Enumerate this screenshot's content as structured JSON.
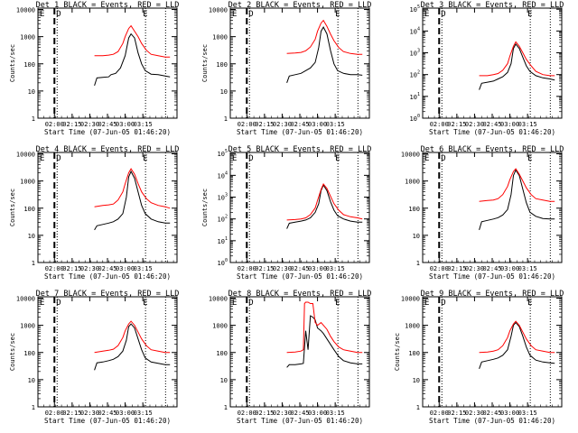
{
  "colors": {
    "background": "#ffffff",
    "events": "#000000",
    "lld": "#ff0000",
    "axis": "#000000"
  },
  "chart_data": [
    {
      "type": "line",
      "title": "Det 1  BLACK = Events, RED = LLD",
      "ylabel": "Counts/sec",
      "xlabel": "Start Time (07-Jun-05 01:46:20)",
      "x_ticks": [
        "02:00",
        "02:15",
        "02:30",
        "02:45",
        "03:00",
        "03:15"
      ],
      "y_ticks": [
        "1",
        "10",
        "100",
        "1000",
        "10000"
      ],
      "ylim_log10": [
        0,
        4.05
      ],
      "flags": [
        "D",
        "E"
      ],
      "dashed_line_x": 14,
      "dotted_lines_x": [
        14,
        89,
        106
      ],
      "series": [
        {
          "name": "Events",
          "x": [
            48,
            50,
            55,
            60,
            62,
            66,
            70,
            74,
            77,
            79,
            82,
            85,
            88,
            91,
            96,
            102,
            108,
            112
          ],
          "y": [
            1.2,
            1.48,
            1.5,
            1.52,
            1.6,
            1.65,
            1.85,
            2.3,
            2.95,
            3.1,
            2.95,
            2.4,
            2.0,
            1.75,
            1.62,
            1.6,
            1.55,
            1.52
          ]
        },
        {
          "name": "LLD",
          "x": [
            48,
            55,
            60,
            64,
            68,
            72,
            74,
            77,
            79,
            82,
            85,
            88,
            92,
            96,
            102,
            108,
            112
          ],
          "y": [
            2.3,
            2.3,
            2.32,
            2.35,
            2.45,
            2.75,
            3.0,
            3.3,
            3.4,
            3.2,
            3.0,
            2.75,
            2.5,
            2.35,
            2.3,
            2.25,
            2.25
          ]
        }
      ]
    },
    {
      "type": "line",
      "title": "Det 2  BLACK = Events, RED = LLD",
      "ylabel": "Counts/sec",
      "xlabel": "Start Time (07-Jun-05 01:46:20)",
      "x_ticks": [
        "02:00",
        "02:15",
        "02:30",
        "02:45",
        "03:00",
        "03:15"
      ],
      "y_ticks": [
        "1",
        "10",
        "100",
        "1000",
        "10000"
      ],
      "ylim_log10": [
        0,
        4.05
      ],
      "flags": [
        "D",
        "E"
      ],
      "dashed_line_x": 14,
      "dotted_lines_x": [
        14,
        89,
        106
      ],
      "series": [
        {
          "name": "Events",
          "x": [
            48,
            50,
            55,
            60,
            64,
            68,
            72,
            75,
            77,
            79,
            82,
            85,
            88,
            91,
            96,
            102,
            108,
            112
          ],
          "y": [
            1.3,
            1.55,
            1.6,
            1.65,
            1.75,
            1.85,
            2.05,
            2.6,
            3.2,
            3.35,
            3.1,
            2.5,
            2.0,
            1.75,
            1.65,
            1.6,
            1.6,
            1.58
          ]
        },
        {
          "name": "LLD",
          "x": [
            48,
            55,
            60,
            64,
            68,
            72,
            74,
            77,
            79,
            82,
            85,
            88,
            92,
            96,
            102,
            108,
            112
          ],
          "y": [
            2.38,
            2.4,
            2.42,
            2.48,
            2.62,
            2.9,
            3.2,
            3.5,
            3.6,
            3.38,
            3.1,
            2.85,
            2.6,
            2.45,
            2.38,
            2.35,
            2.35
          ]
        }
      ]
    },
    {
      "type": "line",
      "title": "Det 3  BLACK = Events, RED = LLD",
      "ylabel": "",
      "xlabel": "Start Time (07-Jun-05 01:46:20)",
      "x_ticks": [
        "02:00",
        "02:15",
        "02:30",
        "02:45",
        "03:00",
        "03:15"
      ],
      "y_ticks": [
        "10^0",
        "10^1",
        "10^2",
        "10^3",
        "10^4",
        "10^5"
      ],
      "ylim_log10": [
        0,
        5.05
      ],
      "flags": [
        "D",
        "E"
      ],
      "dashed_line_x": 14,
      "dotted_lines_x": [
        14,
        89,
        106
      ],
      "series": [
        {
          "name": "Events",
          "x": [
            48,
            50,
            55,
            60,
            64,
            68,
            72,
            75,
            77,
            79,
            82,
            85,
            88,
            91,
            96,
            102,
            108,
            112
          ],
          "y": [
            1.3,
            1.6,
            1.65,
            1.7,
            1.8,
            1.9,
            2.1,
            2.5,
            3.2,
            3.4,
            3.2,
            2.8,
            2.4,
            2.15,
            1.95,
            1.85,
            1.8,
            1.75
          ]
        },
        {
          "name": "LLD",
          "x": [
            48,
            55,
            60,
            64,
            68,
            72,
            74,
            77,
            79,
            82,
            85,
            88,
            92,
            96,
            102,
            108,
            112
          ],
          "y": [
            1.95,
            1.95,
            2.0,
            2.05,
            2.2,
            2.5,
            2.85,
            3.3,
            3.5,
            3.3,
            3.0,
            2.7,
            2.4,
            2.15,
            2.0,
            1.95,
            1.95
          ]
        }
      ]
    },
    {
      "type": "line",
      "title": "Det 4  BLACK = Events, RED = LLD",
      "ylabel": "Counts/sec",
      "xlabel": "Start Time (07-Jun-05 01:46:20)",
      "x_ticks": [
        "02:00",
        "02:15",
        "02:30",
        "02:45",
        "03:00",
        "03:15"
      ],
      "y_ticks": [
        "1",
        "10",
        "100",
        "1000",
        "10000"
      ],
      "ylim_log10": [
        0,
        4.05
      ],
      "flags": [
        "D",
        "E"
      ],
      "dashed_line_x": 14,
      "dotted_lines_x": [
        14,
        89,
        106
      ],
      "series": [
        {
          "name": "Events",
          "x": [
            48,
            50,
            55,
            60,
            64,
            68,
            72,
            75,
            77,
            79,
            82,
            85,
            88,
            91,
            96,
            102,
            108,
            112
          ],
          "y": [
            1.2,
            1.35,
            1.4,
            1.45,
            1.5,
            1.6,
            1.8,
            2.4,
            3.15,
            3.35,
            3.1,
            2.6,
            2.1,
            1.8,
            1.6,
            1.5,
            1.45,
            1.45
          ]
        },
        {
          "name": "LLD",
          "x": [
            48,
            55,
            60,
            64,
            68,
            72,
            74,
            77,
            79,
            82,
            85,
            88,
            92,
            96,
            102,
            108,
            112
          ],
          "y": [
            2.05,
            2.1,
            2.12,
            2.15,
            2.3,
            2.6,
            2.9,
            3.3,
            3.45,
            3.25,
            2.9,
            2.6,
            2.35,
            2.2,
            2.1,
            2.05,
            2.0
          ]
        }
      ]
    },
    {
      "type": "line",
      "title": "Det 5  BLACK = Events, RED = LLD",
      "ylabel": "Counts/sec",
      "xlabel": "Start Time (07-Jun-05 01:46:20)",
      "x_ticks": [
        "02:00",
        "02:15",
        "02:30",
        "02:45",
        "03:00",
        "03:15"
      ],
      "y_ticks": [
        "10^0",
        "10^1",
        "10^2",
        "10^3",
        "10^4",
        "10^5"
      ],
      "ylim_log10": [
        0,
        5.05
      ],
      "flags": [
        "D",
        "E"
      ],
      "dashed_line_x": 14,
      "dotted_lines_x": [
        14,
        89,
        106
      ],
      "series": [
        {
          "name": "Events",
          "x": [
            48,
            50,
            55,
            60,
            64,
            68,
            72,
            75,
            77,
            79,
            82,
            85,
            88,
            91,
            96,
            102,
            108,
            112
          ],
          "y": [
            1.55,
            1.8,
            1.85,
            1.9,
            1.95,
            2.05,
            2.3,
            2.7,
            3.3,
            3.55,
            3.3,
            2.8,
            2.4,
            2.15,
            2.0,
            1.9,
            1.85,
            1.85
          ]
        },
        {
          "name": "LLD",
          "x": [
            48,
            55,
            60,
            64,
            68,
            72,
            74,
            77,
            79,
            82,
            85,
            88,
            92,
            96,
            102,
            108,
            112
          ],
          "y": [
            1.95,
            1.97,
            2.0,
            2.05,
            2.2,
            2.5,
            2.85,
            3.35,
            3.6,
            3.4,
            3.05,
            2.7,
            2.4,
            2.2,
            2.1,
            2.05,
            2.0
          ]
        }
      ]
    },
    {
      "type": "line",
      "title": "Det 6  BLACK = Events, RED = LLD",
      "ylabel": "",
      "xlabel": "Start Time (07-Jun-05 01:46:20)",
      "x_ticks": [
        "02:00",
        "02:15",
        "02:30",
        "02:45",
        "03:00",
        "03:15"
      ],
      "y_ticks": [
        "1",
        "10",
        "100",
        "1000",
        "10000"
      ],
      "ylim_log10": [
        0,
        4.05
      ],
      "flags": [
        "D",
        "E"
      ],
      "dashed_line_x": 14,
      "dotted_lines_x": [
        14,
        89,
        106
      ],
      "series": [
        {
          "name": "Events",
          "x": [
            48,
            50,
            55,
            60,
            64,
            68,
            72,
            75,
            77,
            79,
            82,
            85,
            88,
            91,
            96,
            102,
            108,
            112
          ],
          "y": [
            1.2,
            1.5,
            1.55,
            1.6,
            1.65,
            1.75,
            1.95,
            2.5,
            3.2,
            3.4,
            3.2,
            2.7,
            2.2,
            1.85,
            1.7,
            1.62,
            1.6,
            1.6
          ]
        },
        {
          "name": "LLD",
          "x": [
            48,
            55,
            60,
            64,
            68,
            72,
            74,
            77,
            79,
            82,
            85,
            88,
            92,
            96,
            102,
            108,
            112
          ],
          "y": [
            2.25,
            2.28,
            2.3,
            2.35,
            2.5,
            2.8,
            3.05,
            3.35,
            3.45,
            3.25,
            3.0,
            2.75,
            2.5,
            2.35,
            2.3,
            2.25,
            2.25
          ]
        }
      ]
    },
    {
      "type": "line",
      "title": "Det 7  BLACK = Events, RED = LLD",
      "ylabel": "Counts/sec",
      "xlabel": "Start Time (07-Jun-05 01:46:20)",
      "x_ticks": [
        "02:00",
        "02:15",
        "02:30",
        "02:45",
        "03:00",
        "03:15"
      ],
      "y_ticks": [
        "1",
        "10",
        "100",
        "1000",
        "10000"
      ],
      "ylim_log10": [
        0,
        4.05
      ],
      "flags": [
        "D",
        "E"
      ],
      "dashed_line_x": 14,
      "dotted_lines_x": [
        14,
        89,
        106
      ],
      "series": [
        {
          "name": "Events",
          "x": [
            48,
            50,
            55,
            60,
            64,
            68,
            72,
            75,
            77,
            79,
            82,
            85,
            88,
            91,
            96,
            102,
            108,
            112
          ],
          "y": [
            1.35,
            1.62,
            1.65,
            1.7,
            1.75,
            1.85,
            2.05,
            2.45,
            2.95,
            3.05,
            2.9,
            2.5,
            2.1,
            1.8,
            1.65,
            1.6,
            1.55,
            1.55
          ]
        },
        {
          "name": "LLD",
          "x": [
            48,
            55,
            60,
            64,
            68,
            72,
            74,
            77,
            79,
            82,
            85,
            88,
            92,
            96,
            102,
            108,
            112
          ],
          "y": [
            2.0,
            2.05,
            2.08,
            2.12,
            2.25,
            2.55,
            2.8,
            3.05,
            3.15,
            3.0,
            2.75,
            2.5,
            2.25,
            2.1,
            2.05,
            2.0,
            2.0
          ]
        }
      ]
    },
    {
      "type": "line",
      "title": "Det 8  BLACK = Events, RED = LLD",
      "ylabel": "",
      "xlabel": "Start Time (07-Jun-05 01:46:20)",
      "x_ticks": [
        "02:00",
        "02:15",
        "02:30",
        "02:45",
        "03:00",
        "03:15"
      ],
      "y_ticks": [
        "1",
        "10",
        "100",
        "1000",
        "10000"
      ],
      "ylim_log10": [
        0,
        4.05
      ],
      "flags": [
        "D",
        "E"
      ],
      "dashed_line_x": 14,
      "dotted_lines_x": [
        14,
        89,
        106
      ],
      "series": [
        {
          "name": "Events",
          "x": [
            48,
            50,
            55,
            60,
            62,
            64,
            66,
            68,
            70,
            72,
            74,
            77,
            79,
            82,
            85,
            88,
            92,
            96,
            102,
            108,
            112
          ],
          "y": [
            1.45,
            1.55,
            1.55,
            1.58,
            1.6,
            2.8,
            2.1,
            3.35,
            3.3,
            3.2,
            2.9,
            2.8,
            2.7,
            2.5,
            2.3,
            2.1,
            1.85,
            1.7,
            1.62,
            1.58,
            1.58
          ]
        },
        {
          "name": "LLD",
          "x": [
            48,
            55,
            60,
            62,
            63,
            64,
            66,
            68,
            70,
            72,
            74,
            77,
            79,
            82,
            85,
            88,
            92,
            96,
            102,
            108,
            112
          ],
          "y": [
            2.0,
            2.02,
            2.05,
            2.1,
            3.8,
            3.85,
            3.85,
            3.8,
            3.8,
            3.1,
            3.0,
            3.1,
            3.0,
            2.85,
            2.6,
            2.4,
            2.2,
            2.1,
            2.05,
            2.0,
            2.0
          ]
        }
      ]
    },
    {
      "type": "line",
      "title": "Det 9  BLACK = Events, RED = LLD",
      "ylabel": "Counts/sec",
      "xlabel": "Start Time (07-Jun-05 01:46:20)",
      "x_ticks": [
        "02:00",
        "02:15",
        "02:30",
        "02:45",
        "03:00",
        "03:15"
      ],
      "y_ticks": [
        "1",
        "10",
        "100",
        "1000",
        "10000"
      ],
      "ylim_log10": [
        0,
        4.05
      ],
      "flags": [
        "D",
        "E"
      ],
      "dashed_line_x": 14,
      "dotted_lines_x": [
        14,
        89,
        106
      ],
      "series": [
        {
          "name": "Events",
          "x": [
            48,
            50,
            55,
            60,
            64,
            68,
            72,
            75,
            77,
            79,
            82,
            85,
            88,
            91,
            96,
            102,
            108,
            112
          ],
          "y": [
            1.4,
            1.65,
            1.7,
            1.75,
            1.8,
            1.9,
            2.1,
            2.6,
            3.0,
            3.1,
            2.95,
            2.6,
            2.2,
            1.9,
            1.72,
            1.65,
            1.62,
            1.6
          ]
        },
        {
          "name": "LLD",
          "x": [
            48,
            55,
            60,
            64,
            68,
            72,
            74,
            77,
            79,
            82,
            85,
            88,
            92,
            96,
            102,
            108,
            112
          ],
          "y": [
            2.0,
            2.02,
            2.05,
            2.1,
            2.25,
            2.55,
            2.8,
            3.05,
            3.15,
            3.0,
            2.75,
            2.5,
            2.25,
            2.1,
            2.05,
            2.0,
            2.0
          ]
        }
      ]
    }
  ]
}
